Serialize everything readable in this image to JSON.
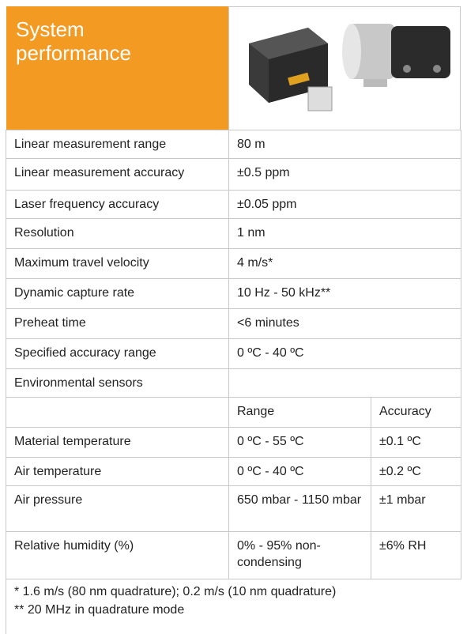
{
  "header": {
    "title": "System performance"
  },
  "specs": [
    {
      "label": "Linear measurement range",
      "value": "80 m"
    },
    {
      "label": "Linear measurement accuracy",
      "value": "±0.5 ppm"
    },
    {
      "label": "Laser frequency accuracy",
      "value": "±0.05 ppm"
    },
    {
      "label": "Resolution",
      "value": "1 nm"
    },
    {
      "label": "Maximum travel velocity",
      "value": "4 m/s*"
    },
    {
      "label": "Dynamic capture rate",
      "value": "10 Hz - 50 kHz**"
    },
    {
      "label": "Preheat time",
      "value": "<6 minutes"
    },
    {
      "label": "Specified accuracy range",
      "value": "0 ºC - 40 ºC"
    }
  ],
  "environmental": {
    "title": "Environmental sensors",
    "columns": [
      "Range",
      "Accuracy"
    ],
    "rows": [
      {
        "label": "Material temperature",
        "range": "0 ºC - 55 ºC",
        "accuracy": "±0.1 ºC"
      },
      {
        "label": "Air temperature",
        "range": "0 ºC - 40 ºC",
        "accuracy": "±0.2 ºC"
      },
      {
        "label": "Air pressure",
        "range": "650 mbar - 1150 mbar",
        "accuracy": "±1 mbar"
      },
      {
        "label": "Relative humidity (%)",
        "range": "0% - 95% non-condensing",
        "accuracy": "±6% RH"
      }
    ]
  },
  "footnotes": [
    "*  1.6 m/s (80 nm quadrature); 0.2 m/s (10 nm quadrature)",
    "** 20 MHz in quadrature mode"
  ]
}
